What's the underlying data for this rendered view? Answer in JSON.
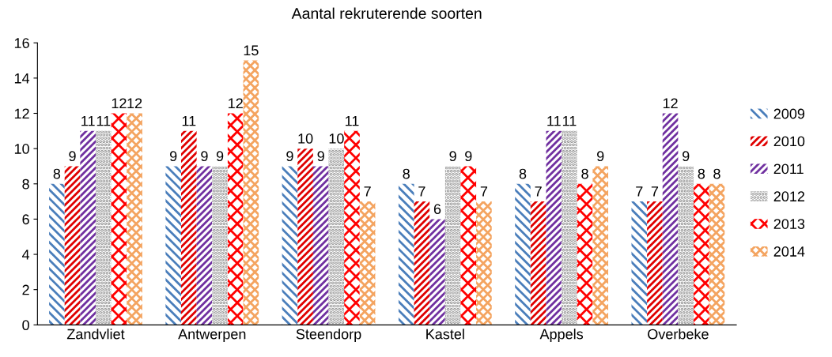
{
  "chart_data": {
    "type": "bar",
    "title": "Aantal rekruterende soorten",
    "categories": [
      "Zandvliet",
      "Antwerpen",
      "Steendorp",
      "Kastel",
      "Appels",
      "Overbeke"
    ],
    "series": [
      {
        "name": "2009",
        "color": "#4a7ebb",
        "values": [
          8,
          9,
          9,
          8,
          8,
          7
        ]
      },
      {
        "name": "2010",
        "color": "#e00000",
        "values": [
          9,
          11,
          10,
          7,
          7,
          7
        ]
      },
      {
        "name": "2011",
        "color": "#7030a0",
        "values": [
          11,
          9,
          9,
          6,
          11,
          12
        ]
      },
      {
        "name": "2012",
        "color": "#909090",
        "values": [
          11,
          9,
          10,
          9,
          11,
          9
        ]
      },
      {
        "name": "2013",
        "color": "#ff0000",
        "values": [
          12,
          12,
          11,
          9,
          8,
          8
        ]
      },
      {
        "name": "2014",
        "color": "#f4a460",
        "values": [
          12,
          15,
          7,
          7,
          9,
          8
        ]
      }
    ],
    "ylim": [
      0,
      16
    ],
    "yticks": [
      0,
      2,
      4,
      6,
      8,
      10,
      12,
      14,
      16
    ],
    "data_labels": true,
    "legend": "right",
    "grid": false
  }
}
